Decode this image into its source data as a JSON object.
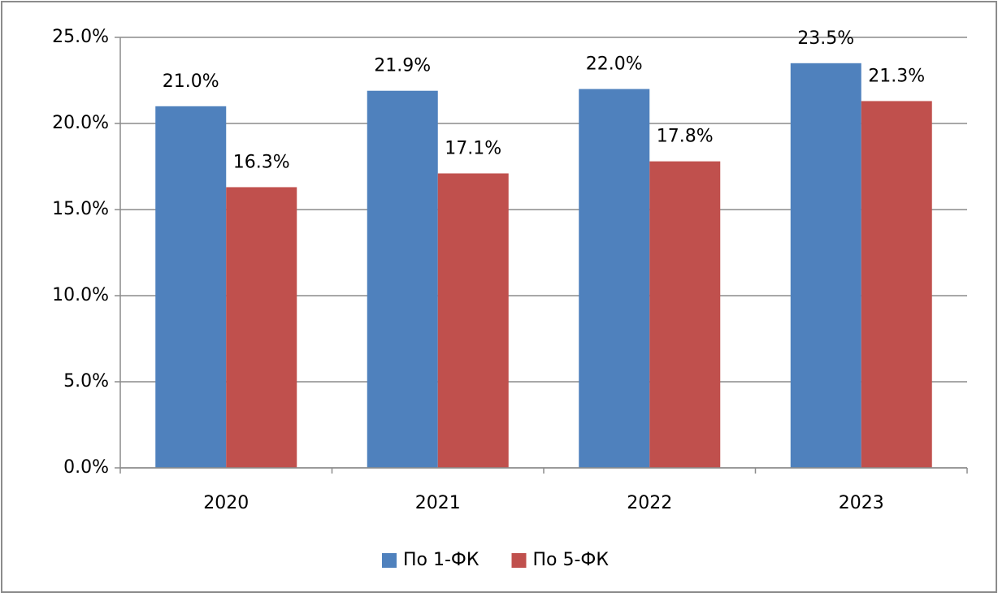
{
  "chart_data": {
    "type": "bar",
    "categories": [
      "2020",
      "2021",
      "2022",
      "2023"
    ],
    "series": [
      {
        "name": "По 1-ФК",
        "color": "#4f81bd",
        "values": [
          21.0,
          21.9,
          22.0,
          23.5
        ],
        "value_labels": [
          "21.0%",
          "21.9%",
          "22.0%",
          "23.5%"
        ]
      },
      {
        "name": "По 5-ФК",
        "color": "#c0504d",
        "values": [
          16.3,
          17.1,
          17.8,
          21.3
        ],
        "value_labels": [
          "16.3%",
          "17.1%",
          "17.8%",
          "21.3%"
        ]
      }
    ],
    "ylim": [
      0,
      25
    ],
    "yticks": [
      {
        "value": 0,
        "label": "0.0%"
      },
      {
        "value": 5,
        "label": "5.0%"
      },
      {
        "value": 10,
        "label": "10.0%"
      },
      {
        "value": 15,
        "label": "15.0%"
      },
      {
        "value": 20,
        "label": "20.0%"
      },
      {
        "value": 25,
        "label": "25.0%"
      }
    ],
    "grid": true,
    "legend": "bottom"
  }
}
